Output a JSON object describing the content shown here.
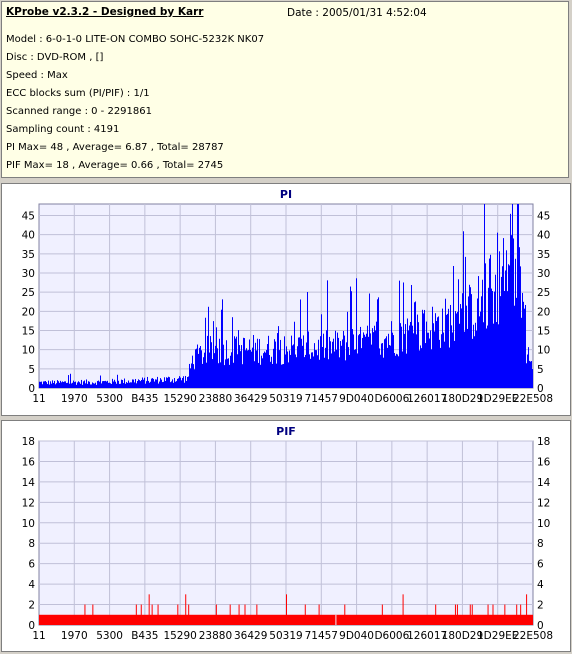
{
  "header": {
    "title": "KProbe v2.3.2 - Designed by Karr",
    "date": "Date : 2005/01/31 4:52:04",
    "lines": [
      "Model : 6-0-1-0 LITE-ON COMBO SOHC-5232K NK07",
      "Disc : DVD-ROM ,  []",
      "Speed : Max",
      "ECC blocks sum (PI/PIF) : 1/1",
      "Scanned range : 0 - 2291861",
      "Sampling count : 4191",
      "PI Max= 48 , Average= 6.87 , Total= 28787",
      "PIF Max= 18 , Average= 0.66 , Total= 2745"
    ]
  },
  "chart_data": [
    {
      "type": "bar",
      "title": "PI",
      "color": "#0000ff",
      "ylim": [
        0,
        48
      ],
      "yticks": [
        0,
        5,
        10,
        15,
        20,
        25,
        30,
        35,
        40,
        45
      ],
      "xtick_labels": [
        "11",
        "1970",
        "5300",
        "B435",
        "15290",
        "23880",
        "36429",
        "50319",
        "71457",
        "9D040",
        "D6006",
        "126017",
        "180D29",
        "1D29EE",
        "22E508"
      ],
      "grid": true,
      "summary": {
        "max": 48,
        "average": 6.87,
        "total": 28787
      },
      "profile": [
        {
          "x": 0.0,
          "y": 1.5
        },
        {
          "x": 0.04,
          "y": 1.5
        },
        {
          "x": 0.08,
          "y": 1.6
        },
        {
          "x": 0.12,
          "y": 1.6
        },
        {
          "x": 0.16,
          "y": 1.8
        },
        {
          "x": 0.2,
          "y": 2.0
        },
        {
          "x": 0.24,
          "y": 2.2
        },
        {
          "x": 0.28,
          "y": 2.5
        },
        {
          "x": 0.3,
          "y": 2.6
        },
        {
          "x": 0.31,
          "y": 8.0
        },
        {
          "x": 0.34,
          "y": 10.5
        },
        {
          "x": 0.4,
          "y": 10.8
        },
        {
          "x": 0.5,
          "y": 11.0
        },
        {
          "x": 0.6,
          "y": 11.8
        },
        {
          "x": 0.65,
          "y": 12.5
        },
        {
          "x": 0.7,
          "y": 14.0
        },
        {
          "x": 0.75,
          "y": 15.5
        },
        {
          "x": 0.8,
          "y": 17.5
        },
        {
          "x": 0.85,
          "y": 19.5
        },
        {
          "x": 0.88,
          "y": 22.0
        },
        {
          "x": 0.9,
          "y": 25.0
        },
        {
          "x": 0.93,
          "y": 30.0
        },
        {
          "x": 0.95,
          "y": 32.0
        },
        {
          "x": 0.97,
          "y": 35.0
        },
        {
          "x": 0.98,
          "y": 22.0
        },
        {
          "x": 0.985,
          "y": 9.0
        },
        {
          "x": 1.0,
          "y": 7.0
        }
      ]
    },
    {
      "type": "bar",
      "title": "PIF",
      "color": "#ff0000",
      "ylim": [
        0,
        18
      ],
      "yticks": [
        0,
        2,
        4,
        6,
        8,
        10,
        12,
        14,
        16,
        18
      ],
      "xtick_labels": [
        "11",
        "1970",
        "5300",
        "B435",
        "15290",
        "23880",
        "36429",
        "50319",
        "71457",
        "9D040",
        "D6006",
        "126017",
        "180D29",
        "1D29EE",
        "22E508"
      ],
      "grid": true,
      "summary": {
        "max": 18,
        "average": 0.66,
        "total": 2745
      },
      "baseline": 1,
      "spikes": [
        {
          "x": 0.092,
          "y": 2
        },
        {
          "x": 0.108,
          "y": 2
        },
        {
          "x": 0.196,
          "y": 2
        },
        {
          "x": 0.206,
          "y": 2
        },
        {
          "x": 0.222,
          "y": 3
        },
        {
          "x": 0.228,
          "y": 2
        },
        {
          "x": 0.24,
          "y": 2
        },
        {
          "x": 0.28,
          "y": 2
        },
        {
          "x": 0.296,
          "y": 3
        },
        {
          "x": 0.302,
          "y": 2
        },
        {
          "x": 0.358,
          "y": 2
        },
        {
          "x": 0.386,
          "y": 2
        },
        {
          "x": 0.404,
          "y": 2
        },
        {
          "x": 0.416,
          "y": 2
        },
        {
          "x": 0.44,
          "y": 2
        },
        {
          "x": 0.5,
          "y": 3
        },
        {
          "x": 0.538,
          "y": 2
        },
        {
          "x": 0.566,
          "y": 2
        },
        {
          "x": 0.618,
          "y": 2
        },
        {
          "x": 0.694,
          "y": 2
        },
        {
          "x": 0.736,
          "y": 3
        },
        {
          "x": 0.802,
          "y": 2
        },
        {
          "x": 0.842,
          "y": 2
        },
        {
          "x": 0.846,
          "y": 2
        },
        {
          "x": 0.872,
          "y": 2
        },
        {
          "x": 0.876,
          "y": 2
        },
        {
          "x": 0.908,
          "y": 2
        },
        {
          "x": 0.918,
          "y": 2
        },
        {
          "x": 0.942,
          "y": 2
        },
        {
          "x": 0.966,
          "y": 2
        },
        {
          "x": 0.974,
          "y": 2
        },
        {
          "x": 0.986,
          "y": 3
        }
      ]
    }
  ]
}
